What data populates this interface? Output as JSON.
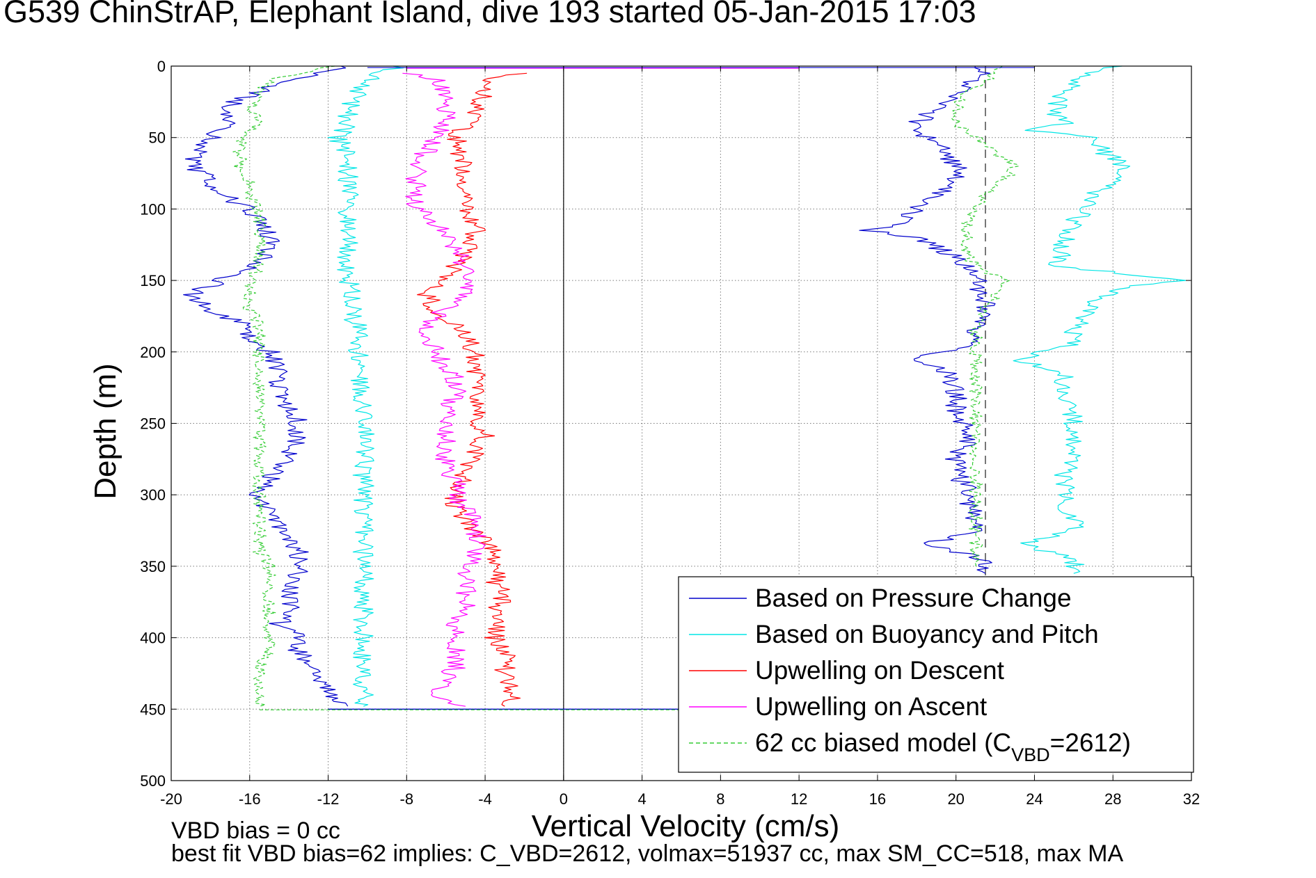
{
  "chart_data": {
    "type": "line",
    "title": "G539 ChinStrAP, Elephant Island, dive 193 started 05-Jan-2015 17:03",
    "xlabel": "Vertical Velocity (cm/s)",
    "ylabel": "Depth (m)",
    "xlim": [
      -20,
      32
    ],
    "ylim": [
      0,
      500
    ],
    "y_reversed": true,
    "grid": true,
    "xticks": [
      -20,
      -16,
      -12,
      -8,
      -4,
      0,
      4,
      8,
      12,
      16,
      20,
      24,
      28,
      32
    ],
    "yticks": [
      0,
      50,
      100,
      150,
      200,
      250,
      300,
      350,
      400,
      450,
      500
    ],
    "legend_position": "bottom-right",
    "reference_lines": [
      {
        "orientation": "vertical",
        "x": 0,
        "style": "solid",
        "color": "#000000"
      },
      {
        "orientation": "vertical",
        "x": 21.5,
        "style": "dashed",
        "color": "#555555",
        "from_depth": 0,
        "to_depth": 358
      }
    ],
    "footnotes": [
      "VBD bias = 0 cc",
      "best fit VBD bias=62 implies: C_VBD=2612, volmax=51937 cc, max SM_CC=518, max MA"
    ],
    "series": [
      {
        "name": "Based on Pressure Change",
        "color": "#0000cc",
        "style": "solid",
        "segments": [
          {
            "depth": [
              0,
              10,
              20,
              30,
              40,
              50,
              60,
              70,
              80,
              90,
              100,
              110,
              120,
              130,
              140,
              150,
              160,
              170,
              180,
              190,
              200,
              210,
              220,
              230,
              240,
              250,
              260,
              270,
              280,
              290,
              300,
              310,
              320,
              330,
              340,
              350,
              360,
              370,
              380,
              390,
              400,
              410,
              420,
              430,
              440,
              448
            ],
            "velocity": [
              -11,
              -14,
              -16,
              -17.5,
              -17,
              -18,
              -18.5,
              -19,
              -18,
              -17.5,
              -16,
              -15.5,
              -15,
              -15,
              -16,
              -17.5,
              -19,
              -18,
              -16.5,
              -16,
              -15,
              -14.5,
              -14.5,
              -14.5,
              -14,
              -13.5,
              -13.5,
              -14,
              -14.5,
              -15,
              -15.5,
              -15,
              -14.5,
              -14,
              -13.5,
              -13.5,
              -13.5,
              -14,
              -14,
              -14.5,
              -13.5,
              -13.5,
              -13,
              -12.5,
              -12,
              -11
            ]
          },
          {
            "depth": [
              0,
              10,
              20,
              30,
              40,
              50,
              60,
              70,
              80,
              90,
              100,
              110,
              115,
              120,
              130,
              140,
              148,
              155,
              165,
              175,
              185,
              195,
              205,
              215,
              225,
              235,
              245,
              255,
              265,
              275,
              285,
              295,
              305,
              315,
              325,
              335,
              345,
              355
            ],
            "velocity": [
              21.5,
              21,
              20,
              19,
              18,
              18.5,
              19.5,
              20,
              20,
              19,
              18,
              17,
              15.5,
              18,
              19.5,
              20.5,
              21.5,
              21,
              21.5,
              21.5,
              21,
              20.5,
              18,
              19.5,
              20,
              20,
              20,
              20.5,
              20.5,
              20,
              20,
              20.5,
              20.5,
              21,
              21,
              18.5,
              21.5,
              21.5
            ]
          }
        ]
      },
      {
        "name": "Based on Buoyancy and Pitch",
        "color": "#00e5e5",
        "style": "solid",
        "segments": [
          {
            "depth": [
              0,
              10,
              20,
              30,
              40,
              50,
              60,
              70,
              80,
              90,
              100,
              110,
              120,
              130,
              140,
              150,
              160,
              170,
              180,
              190,
              200,
              210,
              220,
              230,
              240,
              250,
              260,
              270,
              280,
              290,
              300,
              310,
              320,
              330,
              340,
              350,
              360,
              370,
              380,
              390,
              400,
              410,
              420,
              430,
              440,
              448
            ],
            "velocity": [
              -8.5,
              -10,
              -10.5,
              -11,
              -11,
              -11.5,
              -11,
              -11,
              -11,
              -11,
              -11,
              -11,
              -11,
              -11,
              -11,
              -11,
              -10.8,
              -10.8,
              -10.6,
              -10.5,
              -10.5,
              -10.5,
              -10.4,
              -10.3,
              -10.3,
              -10.2,
              -10.2,
              -10.2,
              -10.2,
              -10.2,
              -10.2,
              -10.2,
              -10.2,
              -10.2,
              -10.2,
              -10.2,
              -10.2,
              -10.2,
              -10.2,
              -10.2,
              -10.2,
              -10.2,
              -10.2,
              -10.2,
              -10.2,
              -10.2
            ]
          },
          {
            "depth": [
              0,
              10,
              20,
              30,
              40,
              45,
              50,
              60,
              70,
              80,
              90,
              100,
              110,
              120,
              130,
              140,
              150,
              155,
              165,
              175,
              185,
              195,
              205,
              215,
              225,
              235,
              245,
              255,
              265,
              275,
              285,
              295,
              305,
              315,
              325,
              335,
              345,
              355
            ],
            "velocity": [
              28,
              26,
              25.5,
              25,
              25.5,
              24,
              27,
              27.5,
              28.5,
              28,
              27,
              26.5,
              26,
              25.5,
              25.5,
              25,
              32,
              28.5,
              27,
              26.5,
              26,
              26,
              23,
              25.5,
              25.5,
              25.5,
              26,
              26,
              26,
              26,
              25.5,
              25.5,
              25.5,
              26,
              26,
              23.5,
              26,
              26
            ]
          }
        ]
      },
      {
        "name": "Upwelling on Descent",
        "color": "#ff0000",
        "style": "solid",
        "segments": [
          {
            "depth": [
              5,
              10,
              20,
              30,
              40,
              50,
              60,
              70,
              80,
              90,
              100,
              110,
              120,
              130,
              140,
              150,
              160,
              170,
              180,
              190,
              200,
              210,
              220,
              230,
              240,
              250,
              260,
              270,
              280,
              290,
              300,
              310,
              320,
              330,
              340,
              350,
              360,
              370,
              380,
              390,
              400,
              410,
              420,
              430,
              440,
              448
            ],
            "velocity": [
              -2,
              -4,
              -4,
              -4.5,
              -5,
              -5.5,
              -5.5,
              -5,
              -5.5,
              -5,
              -5,
              -4.5,
              -4.5,
              -5,
              -5.5,
              -6,
              -7,
              -6.5,
              -5.5,
              -5,
              -4.5,
              -4.5,
              -4.5,
              -4.5,
              -4.5,
              -4.5,
              -4,
              -4.5,
              -5,
              -5,
              -5.5,
              -5.5,
              -5,
              -4,
              -3.5,
              -3.5,
              -3.5,
              -3,
              -3.5,
              -3.5,
              -3.5,
              -3,
              -3,
              -3,
              -2.5,
              -3
            ]
          }
        ]
      },
      {
        "name": "Upwelling on Ascent",
        "color": "#ff00ff",
        "style": "solid",
        "segments": [
          {
            "depth": [
              5,
              10,
              20,
              30,
              40,
              50,
              60,
              70,
              80,
              90,
              100,
              110,
              120,
              130,
              140,
              150,
              160,
              170,
              180,
              190,
              200,
              210,
              220,
              230,
              240,
              250,
              260,
              270,
              280,
              290,
              300,
              310,
              320,
              330,
              340,
              350,
              360,
              370,
              380,
              390,
              400,
              410,
              420,
              430,
              440,
              448
            ],
            "velocity": [
              -8,
              -6.5,
              -6,
              -6,
              -6,
              -6.5,
              -7,
              -7.5,
              -7.5,
              -7.5,
              -7.5,
              -6.5,
              -6,
              -5.5,
              -5,
              -4.5,
              -5,
              -6,
              -7,
              -7,
              -6.5,
              -6,
              -5.5,
              -5.5,
              -6,
              -6,
              -6,
              -6,
              -6,
              -5.5,
              -5.5,
              -5,
              -4.5,
              -4.5,
              -4.5,
              -5,
              -5,
              -5,
              -5,
              -5.5,
              -5.5,
              -5.5,
              -5.5,
              -6,
              -7,
              -5
            ]
          }
        ]
      },
      {
        "name": "62 cc biased model (C_VBD=2612)",
        "color": "#33cc33",
        "style": "dashed",
        "segments": [
          {
            "depth": [
              0,
              10,
              20,
              30,
              40,
              50,
              60,
              70,
              80,
              90,
              100,
              110,
              120,
              130,
              140,
              150,
              160,
              170,
              180,
              190,
              200,
              210,
              220,
              230,
              240,
              250,
              260,
              270,
              280,
              290,
              300,
              310,
              320,
              330,
              340,
              350,
              360,
              370,
              380,
              390,
              400,
              410,
              420,
              430,
              440,
              448
            ],
            "velocity": [
              -12,
              -15,
              -15.5,
              -16,
              -15.5,
              -16.5,
              -16.5,
              -16.5,
              -16,
              -16,
              -15.5,
              -15.5,
              -15.5,
              -15.5,
              -15.5,
              -16,
              -16,
              -16,
              -15.5,
              -15.5,
              -15.5,
              -15.5,
              -15.5,
              -15.5,
              -15.5,
              -15.5,
              -15.5,
              -15.5,
              -15.5,
              -15.5,
              -15.5,
              -15.5,
              -15.5,
              -15.5,
              -15.5,
              -15,
              -15,
              -15,
              -15,
              -15,
              -15,
              -15,
              -15.5,
              -15.5,
              -15.5,
              -15.5
            ]
          },
          {
            "depth": [
              0,
              10,
              20,
              30,
              40,
              50,
              60,
              70,
              80,
              90,
              100,
              110,
              120,
              130,
              140,
              150,
              160,
              170,
              180,
              190,
              200,
              210,
              220,
              230,
              240,
              250,
              260,
              270,
              280,
              290,
              300,
              310,
              320,
              330,
              340,
              350
            ],
            "velocity": [
              22.5,
              21.5,
              20.5,
              20,
              20,
              21,
              22,
              23,
              22.5,
              21.5,
              21,
              20.5,
              20.5,
              20.5,
              21,
              22.5,
              22,
              21.5,
              21,
              21,
              21,
              21,
              21,
              21,
              21,
              21,
              21,
              21,
              21,
              21,
              21,
              21,
              21,
              21,
              21,
              21
            ]
          }
        ]
      }
    ]
  },
  "legend": {
    "items": [
      {
        "label": "Based on Pressure Change",
        "color": "#0000cc",
        "dash": ""
      },
      {
        "label": "Based on Buoyancy and Pitch",
        "color": "#00e5e5",
        "dash": ""
      },
      {
        "label": "Upwelling on Descent",
        "color": "#ff0000",
        "dash": ""
      },
      {
        "label": "Upwelling on Ascent",
        "color": "#ff00ff",
        "dash": ""
      },
      {
        "label": "62 cc biased model (C",
        "sub": "VBD",
        "tail": "=2612)",
        "color": "#33cc33",
        "dash": "6,4"
      }
    ]
  }
}
